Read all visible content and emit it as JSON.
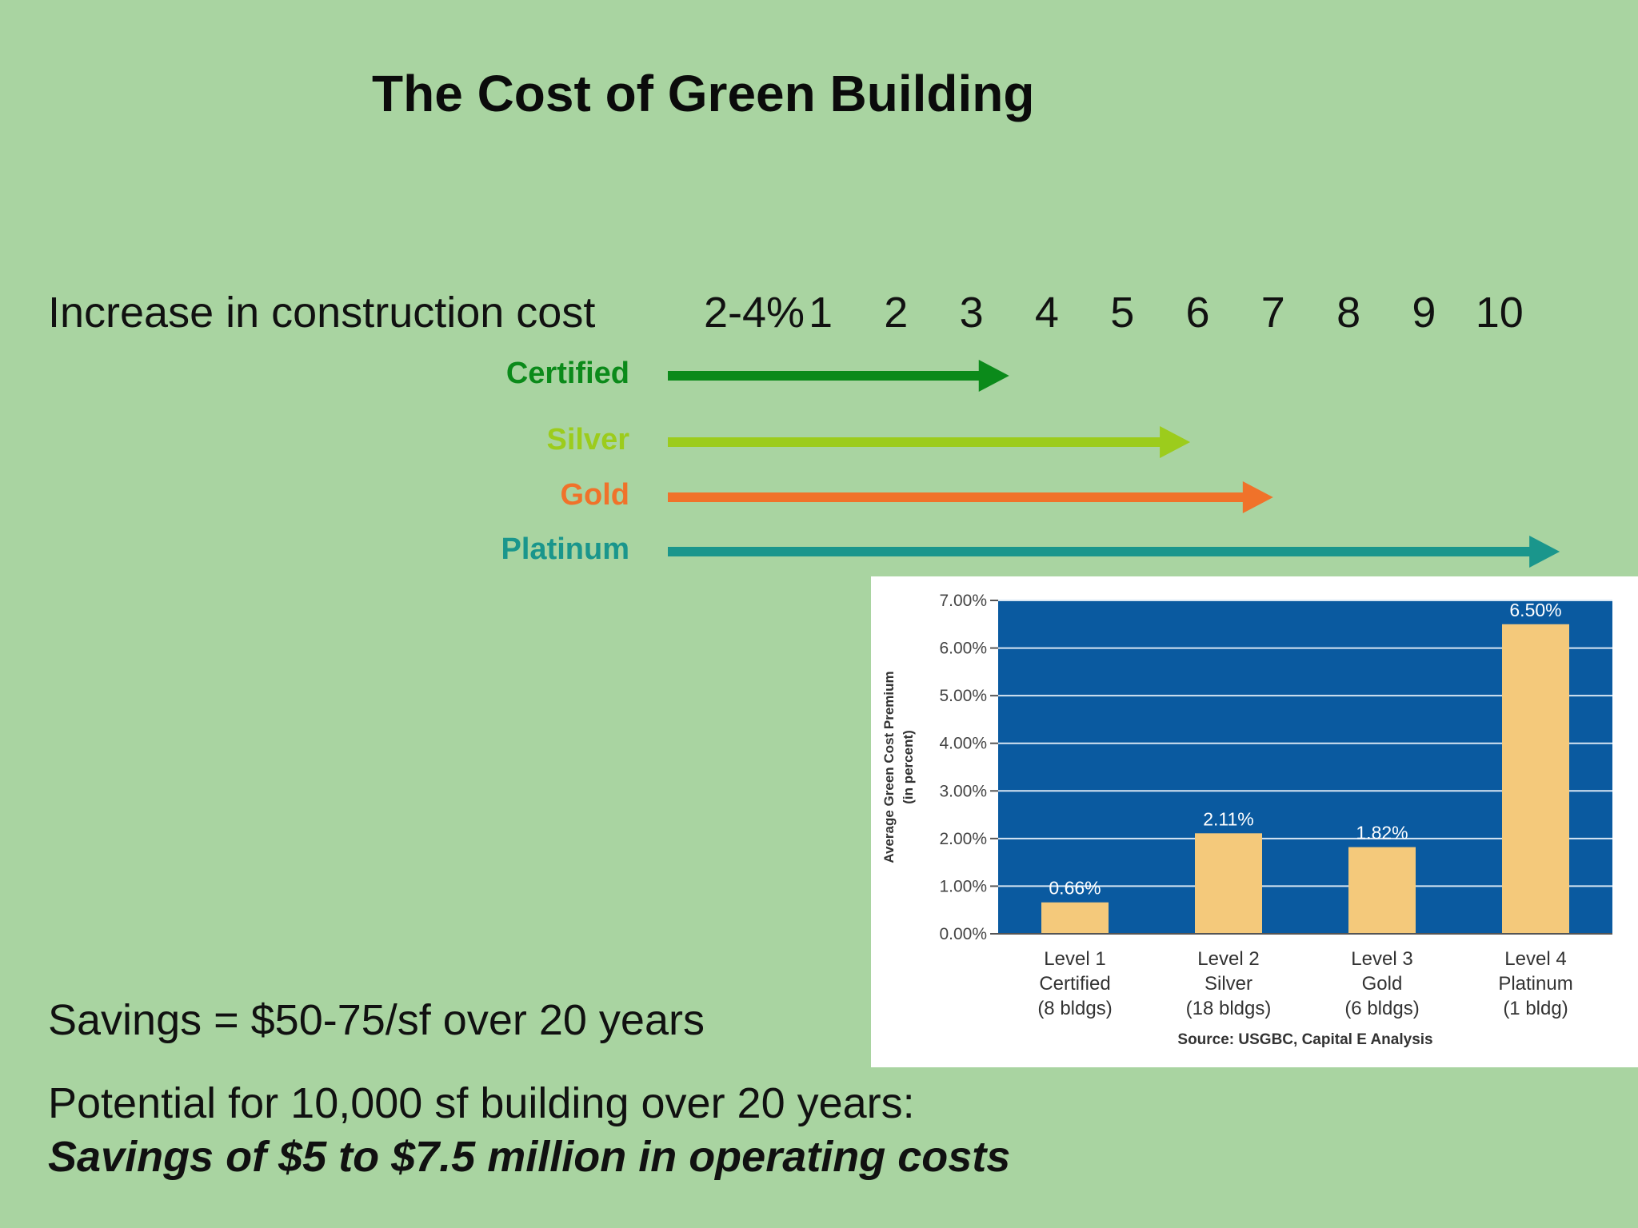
{
  "title": "The Cost of Green Building",
  "timeline": {
    "label": "Increase in construction cost",
    "range_label": "2-4%",
    "scale": [
      "1",
      "2",
      "3",
      "4",
      "5",
      "6",
      "7",
      "8",
      "9",
      "10"
    ],
    "levels": [
      {
        "name": "Certified",
        "color": "#0b8a1a",
        "end": 3.5
      },
      {
        "name": "Silver",
        "color": "#9ccc1c",
        "end": 5.9
      },
      {
        "name": "Gold",
        "color": "#f0722a",
        "end": 7.0
      },
      {
        "name": "Platinum",
        "color": "#1a968c",
        "end": 10.8
      }
    ]
  },
  "chart_data": {
    "type": "bar",
    "categories": [
      [
        "Level 1",
        "Certified",
        "(8 bldgs)"
      ],
      [
        "Level 2",
        "Silver",
        "(18 bldgs)"
      ],
      [
        "Level 3",
        "Gold",
        "(6 bldgs)"
      ],
      [
        "Level 4",
        "Platinum",
        "(1 bldg)"
      ]
    ],
    "values": [
      0.66,
      2.11,
      1.82,
      6.5
    ],
    "value_labels": [
      "0.66%",
      "2.11%",
      "1.82%",
      "6.50%"
    ],
    "ylabel": [
      "Average Green Cost Premium",
      "(in percent)"
    ],
    "yticks": [
      "0.00%",
      "1.00%",
      "2.00%",
      "3.00%",
      "4.00%",
      "5.00%",
      "6.00%",
      "7.00%"
    ],
    "ylim": [
      0,
      7
    ],
    "source": "Source: USGBC, Capital E Analysis",
    "plot_background": "#0a5aa0",
    "bar_color": "#f4c97b",
    "grid": true
  },
  "savings": {
    "line1": "Savings = $50-75/sf over 20 years",
    "line2": "Potential for 10,000 sf building over 20 years:",
    "line3": "Savings of $5 to $7.5 million in operating costs"
  }
}
